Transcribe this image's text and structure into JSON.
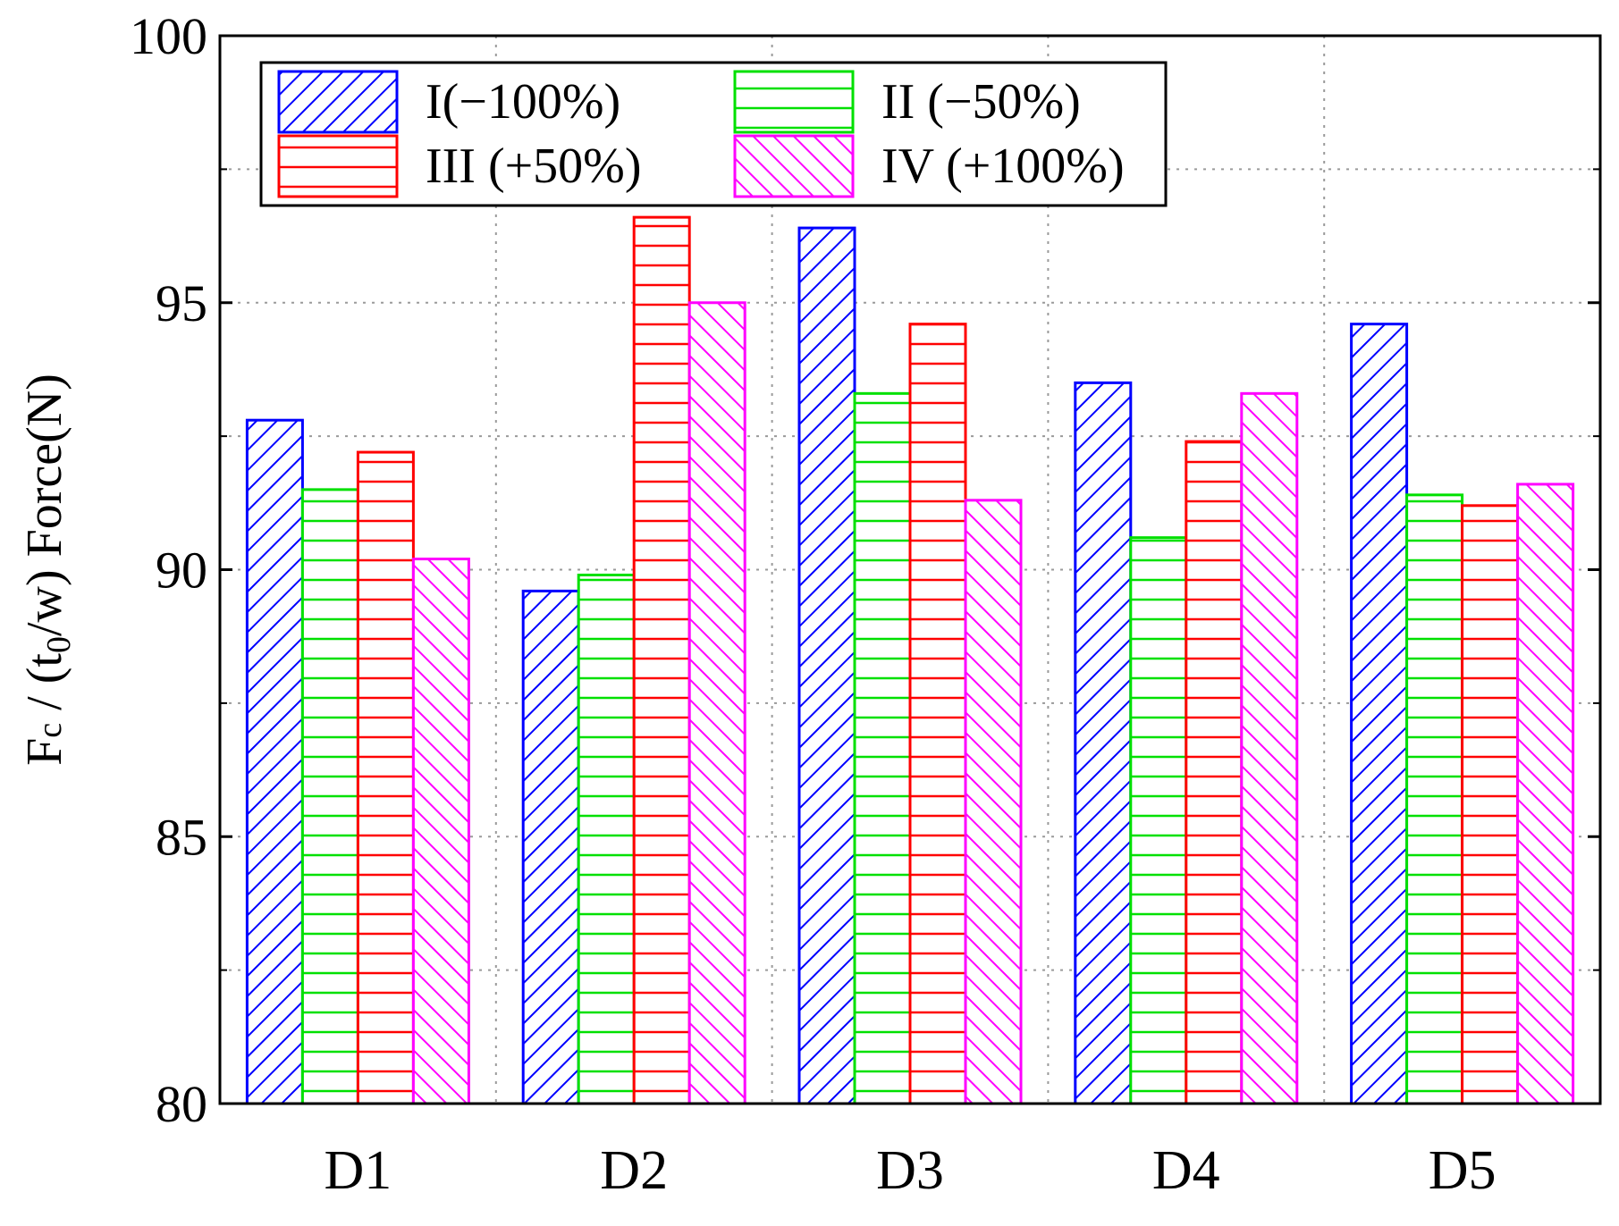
{
  "chart_data": {
    "type": "bar",
    "title": "",
    "xlabel": "",
    "ylabel": "Fc / (t0/w)  Force(N)",
    "ylabel_parts": {
      "main": "F",
      "sub1": "c",
      "mid": " / (t",
      "sub2": "0",
      "end": "/w)  Force(N)"
    },
    "ylim": [
      80,
      100
    ],
    "yticks": [
      80,
      85,
      90,
      95,
      100
    ],
    "grid": true,
    "legend_position": "top-left",
    "categories": [
      "D1",
      "D2",
      "D3",
      "D4",
      "D5"
    ],
    "series": [
      {
        "name": "I(−100%)",
        "color": "#0000ff",
        "pattern": "diag-right",
        "values": [
          92.8,
          89.6,
          96.4,
          93.5,
          94.6
        ]
      },
      {
        "name": "II (−50%)",
        "color": "#00e000",
        "pattern": "horizontal",
        "values": [
          91.5,
          89.9,
          93.3,
          90.6,
          91.4
        ]
      },
      {
        "name": "III (+50%)",
        "color": "#ff0000",
        "pattern": "horizontal",
        "values": [
          92.2,
          96.6,
          94.6,
          92.4,
          91.2
        ]
      },
      {
        "name": "IV (+100%)",
        "color": "#ff00ff",
        "pattern": "diag-left",
        "values": [
          90.2,
          95.0,
          91.3,
          93.3,
          91.6
        ]
      }
    ]
  }
}
